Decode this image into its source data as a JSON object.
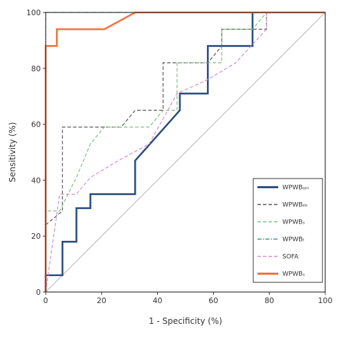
{
  "chart_data": {
    "type": "line",
    "title": "",
    "xlabel": "1 - Specificity (%)",
    "ylabel": "Sensitivity (%)",
    "xlim": [
      0,
      100
    ],
    "ylim": [
      0,
      100
    ],
    "x_ticks": [
      "0",
      "20",
      "40",
      "60",
      "80",
      "100"
    ],
    "y_ticks": [
      "0",
      "20",
      "40",
      "60",
      "80",
      "100"
    ],
    "grid": false,
    "legend_position": "bottom-right",
    "reference_line": {
      "x": [
        0,
        100
      ],
      "y": [
        0,
        100
      ],
      "color": "#b3b3b3"
    },
    "series": [
      {
        "name": "WPWBₐₘ",
        "color": "#2b4f7e",
        "style": "solid",
        "x": [
          0,
          0,
          6,
          6,
          11,
          11,
          16,
          16,
          32,
          32,
          48,
          48,
          58,
          58,
          68,
          68,
          74,
          74
        ],
        "y": [
          0,
          6,
          6,
          18,
          18,
          30,
          30,
          35,
          35,
          47,
          65,
          71,
          71,
          88,
          88,
          88,
          88,
          100
        ]
      },
      {
        "name": "WPWBₑₖ",
        "color": "#555555",
        "style": "dashed",
        "x": [
          0,
          6,
          6,
          27,
          32,
          42,
          42,
          47,
          58,
          63,
          63,
          74,
          79,
          79
        ],
        "y": [
          24,
          29,
          59,
          59,
          65,
          65,
          82,
          82,
          82,
          88,
          94,
          94,
          94,
          100
        ]
      },
      {
        "name": "WPWBₛ",
        "color": "#7fbf7f",
        "style": "dashed",
        "x": [
          0,
          0,
          5,
          11,
          16,
          21,
          37,
          42,
          47,
          47,
          58,
          63,
          63,
          74,
          79
        ],
        "y": [
          0,
          29,
          29,
          41,
          53,
          59,
          59,
          65,
          65,
          82,
          82,
          82,
          94,
          94,
          100
        ]
      },
      {
        "name": "WPWBₜ",
        "color": "#2e9a8e",
        "style": "dashdot",
        "x": [
          0,
          0,
          1,
          100
        ],
        "y": [
          0,
          100,
          100,
          100
        ]
      },
      {
        "name": "SOFA",
        "color": "#d98ac8",
        "style": "dashed",
        "x": [
          0,
          5,
          11,
          16,
          26,
          37,
          47,
          58,
          68,
          79,
          79
        ],
        "y": [
          0,
          35,
          35,
          41,
          47,
          53,
          71,
          76,
          82,
          94,
          100
        ]
      },
      {
        "name": "WPWBₛ",
        "color": "#f0723e",
        "style": "solid",
        "x": [
          0,
          0,
          4,
          4,
          11,
          21,
          32,
          100
        ],
        "y": [
          0,
          88,
          88,
          94,
          94,
          94,
          100,
          100
        ]
      }
    ]
  }
}
